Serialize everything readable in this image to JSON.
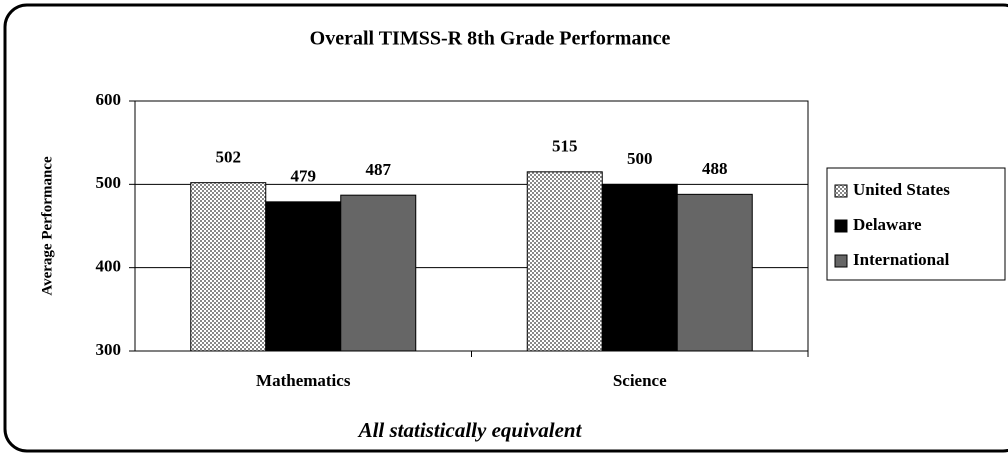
{
  "chart_data": {
    "type": "bar",
    "title": "Overall TIMSS-R 8th Grade Performance",
    "y_label": "Average Performance",
    "annotation": "All statistically equivalent",
    "categories": [
      "Mathematics",
      "Science"
    ],
    "series": [
      {
        "name": "United States",
        "color": "#c8c8c8",
        "pattern": "checker",
        "values": [
          502,
          515
        ]
      },
      {
        "name": "Delaware",
        "color": "#000000",
        "values": [
          479,
          500
        ]
      },
      {
        "name": "International",
        "color": "#666666",
        "values": [
          487,
          488
        ]
      }
    ],
    "ylim": [
      300,
      600
    ],
    "yticks": [
      300,
      400,
      500,
      600
    ],
    "grid": true,
    "legend": "right"
  }
}
